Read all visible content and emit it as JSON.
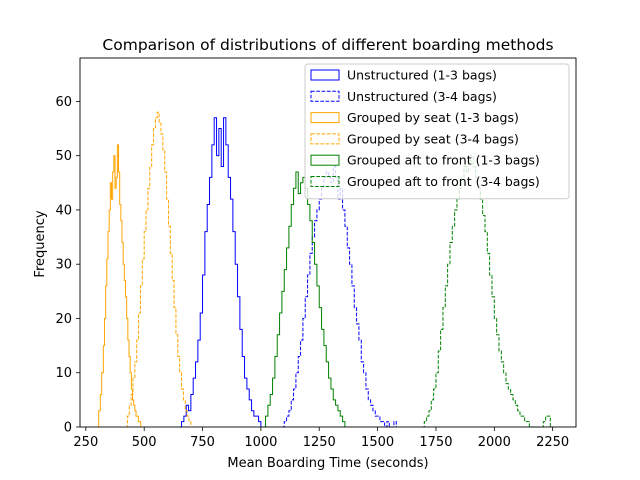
{
  "chart_data": {
    "type": "histogram",
    "title": "Comparison of distributions of different boarding methods",
    "xlabel": "Mean Boarding Time (seconds)",
    "ylabel": "Frequency",
    "xlim": [
      225,
      2350
    ],
    "ylim": [
      0,
      68
    ],
    "xticks": [
      250,
      500,
      750,
      1000,
      1250,
      1500,
      1750,
      2000,
      2250
    ],
    "yticks": [
      0,
      10,
      20,
      30,
      40,
      50,
      60
    ],
    "grid": false,
    "legend_position": "upper-right",
    "series": [
      {
        "name": "Unstructured (1-3 bags)",
        "color": "#0000ff",
        "linestyle": "solid",
        "points": [
          [
            650,
            0
          ],
          [
            660,
            1
          ],
          [
            670,
            2
          ],
          [
            680,
            4
          ],
          [
            690,
            3
          ],
          [
            700,
            6
          ],
          [
            710,
            9
          ],
          [
            720,
            12
          ],
          [
            730,
            16
          ],
          [
            740,
            21
          ],
          [
            750,
            28
          ],
          [
            760,
            36
          ],
          [
            770,
            41
          ],
          [
            780,
            46
          ],
          [
            790,
            52
          ],
          [
            800,
            57
          ],
          [
            810,
            50
          ],
          [
            820,
            55
          ],
          [
            830,
            48
          ],
          [
            840,
            57
          ],
          [
            850,
            52
          ],
          [
            860,
            46
          ],
          [
            870,
            42
          ],
          [
            880,
            36
          ],
          [
            890,
            30
          ],
          [
            900,
            24
          ],
          [
            910,
            18
          ],
          [
            920,
            13
          ],
          [
            930,
            9
          ],
          [
            940,
            7
          ],
          [
            950,
            5
          ],
          [
            960,
            3
          ],
          [
            970,
            2
          ],
          [
            980,
            2
          ],
          [
            990,
            1
          ],
          [
            1000,
            0
          ]
        ]
      },
      {
        "name": "Unstructured (3-4 bags)",
        "color": "#0000ff",
        "linestyle": "dashed",
        "points": [
          [
            1090,
            0
          ],
          [
            1100,
            1
          ],
          [
            1110,
            2
          ],
          [
            1120,
            3
          ],
          [
            1130,
            5
          ],
          [
            1140,
            7
          ],
          [
            1150,
            10
          ],
          [
            1160,
            13
          ],
          [
            1170,
            16
          ],
          [
            1180,
            20
          ],
          [
            1190,
            24
          ],
          [
            1200,
            28
          ],
          [
            1210,
            32
          ],
          [
            1220,
            35
          ],
          [
            1230,
            38
          ],
          [
            1240,
            40
          ],
          [
            1250,
            42
          ],
          [
            1260,
            44
          ],
          [
            1270,
            46
          ],
          [
            1280,
            47
          ],
          [
            1290,
            46
          ],
          [
            1300,
            45
          ],
          [
            1310,
            48
          ],
          [
            1320,
            46
          ],
          [
            1330,
            42
          ],
          [
            1340,
            44
          ],
          [
            1350,
            40
          ],
          [
            1360,
            37
          ],
          [
            1370,
            33
          ],
          [
            1380,
            30
          ],
          [
            1390,
            26
          ],
          [
            1400,
            22
          ],
          [
            1410,
            19
          ],
          [
            1420,
            16
          ],
          [
            1430,
            12
          ],
          [
            1440,
            10
          ],
          [
            1450,
            7
          ],
          [
            1460,
            5
          ],
          [
            1470,
            4
          ],
          [
            1480,
            3
          ],
          [
            1490,
            2
          ],
          [
            1500,
            2
          ],
          [
            1510,
            1
          ],
          [
            1520,
            1
          ],
          [
            1530,
            0
          ],
          [
            1540,
            1
          ],
          [
            1550,
            0
          ],
          [
            1560,
            0
          ],
          [
            1570,
            1
          ],
          [
            1580,
            0
          ]
        ]
      },
      {
        "name": "Grouped by seat (1-3 bags)",
        "color": "#ffa500",
        "linestyle": "solid",
        "points": [
          [
            300,
            0
          ],
          [
            305,
            3
          ],
          [
            312,
            6
          ],
          [
            318,
            10
          ],
          [
            325,
            15
          ],
          [
            330,
            20
          ],
          [
            335,
            26
          ],
          [
            340,
            31
          ],
          [
            345,
            36
          ],
          [
            350,
            40
          ],
          [
            355,
            45
          ],
          [
            360,
            42
          ],
          [
            365,
            47
          ],
          [
            370,
            50
          ],
          [
            375,
            44
          ],
          [
            380,
            46
          ],
          [
            385,
            52
          ],
          [
            390,
            47
          ],
          [
            395,
            41
          ],
          [
            400,
            38
          ],
          [
            405,
            34
          ],
          [
            410,
            30
          ],
          [
            415,
            27
          ],
          [
            420,
            24
          ],
          [
            425,
            20
          ],
          [
            430,
            16
          ],
          [
            435,
            13
          ],
          [
            440,
            10
          ],
          [
            445,
            7
          ],
          [
            450,
            5
          ],
          [
            455,
            4
          ],
          [
            460,
            3
          ],
          [
            465,
            2
          ],
          [
            470,
            2
          ],
          [
            475,
            1
          ],
          [
            480,
            1
          ],
          [
            485,
            0
          ]
        ]
      },
      {
        "name": "Grouped by seat (3-4 bags)",
        "color": "#ffa500",
        "linestyle": "dashed",
        "points": [
          [
            420,
            0
          ],
          [
            428,
            2
          ],
          [
            436,
            4
          ],
          [
            444,
            6
          ],
          [
            452,
            9
          ],
          [
            460,
            12
          ],
          [
            468,
            16
          ],
          [
            476,
            21
          ],
          [
            484,
            26
          ],
          [
            492,
            31
          ],
          [
            500,
            36
          ],
          [
            508,
            40
          ],
          [
            516,
            44
          ],
          [
            524,
            48
          ],
          [
            532,
            52
          ],
          [
            540,
            55
          ],
          [
            548,
            57
          ],
          [
            556,
            58
          ],
          [
            564,
            56
          ],
          [
            572,
            54
          ],
          [
            580,
            51
          ],
          [
            588,
            47
          ],
          [
            596,
            42
          ],
          [
            604,
            37
          ],
          [
            612,
            32
          ],
          [
            620,
            27
          ],
          [
            628,
            22
          ],
          [
            636,
            17
          ],
          [
            644,
            13
          ],
          [
            652,
            10
          ],
          [
            660,
            7
          ],
          [
            668,
            5
          ],
          [
            676,
            3
          ],
          [
            684,
            2
          ],
          [
            692,
            1
          ],
          [
            700,
            0
          ]
        ]
      },
      {
        "name": "Grouped aft to front (1-3 bags)",
        "color": "#008000",
        "linestyle": "solid",
        "points": [
          [
            1010,
            0
          ],
          [
            1020,
            2
          ],
          [
            1030,
            4
          ],
          [
            1040,
            6
          ],
          [
            1050,
            9
          ],
          [
            1060,
            13
          ],
          [
            1070,
            17
          ],
          [
            1080,
            21
          ],
          [
            1090,
            25
          ],
          [
            1100,
            29
          ],
          [
            1110,
            33
          ],
          [
            1120,
            37
          ],
          [
            1130,
            41
          ],
          [
            1140,
            44
          ],
          [
            1150,
            47
          ],
          [
            1160,
            43
          ],
          [
            1170,
            45
          ],
          [
            1180,
            46
          ],
          [
            1190,
            44
          ],
          [
            1200,
            41
          ],
          [
            1210,
            38
          ],
          [
            1220,
            34
          ],
          [
            1230,
            30
          ],
          [
            1240,
            26
          ],
          [
            1250,
            22
          ],
          [
            1260,
            18
          ],
          [
            1270,
            15
          ],
          [
            1280,
            12
          ],
          [
            1290,
            9
          ],
          [
            1300,
            7
          ],
          [
            1310,
            5
          ],
          [
            1320,
            4
          ],
          [
            1330,
            3
          ],
          [
            1340,
            2
          ],
          [
            1350,
            1
          ],
          [
            1360,
            0
          ]
        ]
      },
      {
        "name": "Grouped aft to front (3-4 bags)",
        "color": "#008000",
        "linestyle": "dashed",
        "points": [
          [
            1690,
            0
          ],
          [
            1700,
            1
          ],
          [
            1710,
            2
          ],
          [
            1720,
            3
          ],
          [
            1730,
            5
          ],
          [
            1740,
            7
          ],
          [
            1750,
            10
          ],
          [
            1760,
            14
          ],
          [
            1770,
            18
          ],
          [
            1780,
            22
          ],
          [
            1790,
            26
          ],
          [
            1800,
            30
          ],
          [
            1810,
            34
          ],
          [
            1820,
            37
          ],
          [
            1830,
            40
          ],
          [
            1840,
            42
          ],
          [
            1850,
            44
          ],
          [
            1860,
            46
          ],
          [
            1870,
            48
          ],
          [
            1880,
            47
          ],
          [
            1890,
            49
          ],
          [
            1900,
            50
          ],
          [
            1910,
            48
          ],
          [
            1920,
            46
          ],
          [
            1930,
            44
          ],
          [
            1940,
            42
          ],
          [
            1950,
            39
          ],
          [
            1960,
            36
          ],
          [
            1970,
            32
          ],
          [
            1980,
            28
          ],
          [
            1990,
            24
          ],
          [
            2000,
            20
          ],
          [
            2010,
            17
          ],
          [
            2020,
            14
          ],
          [
            2030,
            12
          ],
          [
            2040,
            10
          ],
          [
            2050,
            8
          ],
          [
            2060,
            7
          ],
          [
            2070,
            6
          ],
          [
            2080,
            5
          ],
          [
            2090,
            4
          ],
          [
            2100,
            3
          ],
          [
            2110,
            2
          ],
          [
            2120,
            2
          ],
          [
            2130,
            1
          ],
          [
            2140,
            1
          ],
          [
            2150,
            0
          ],
          [
            2200,
            0
          ],
          [
            2210,
            1
          ],
          [
            2220,
            2
          ],
          [
            2240,
            0
          ]
        ]
      }
    ]
  }
}
